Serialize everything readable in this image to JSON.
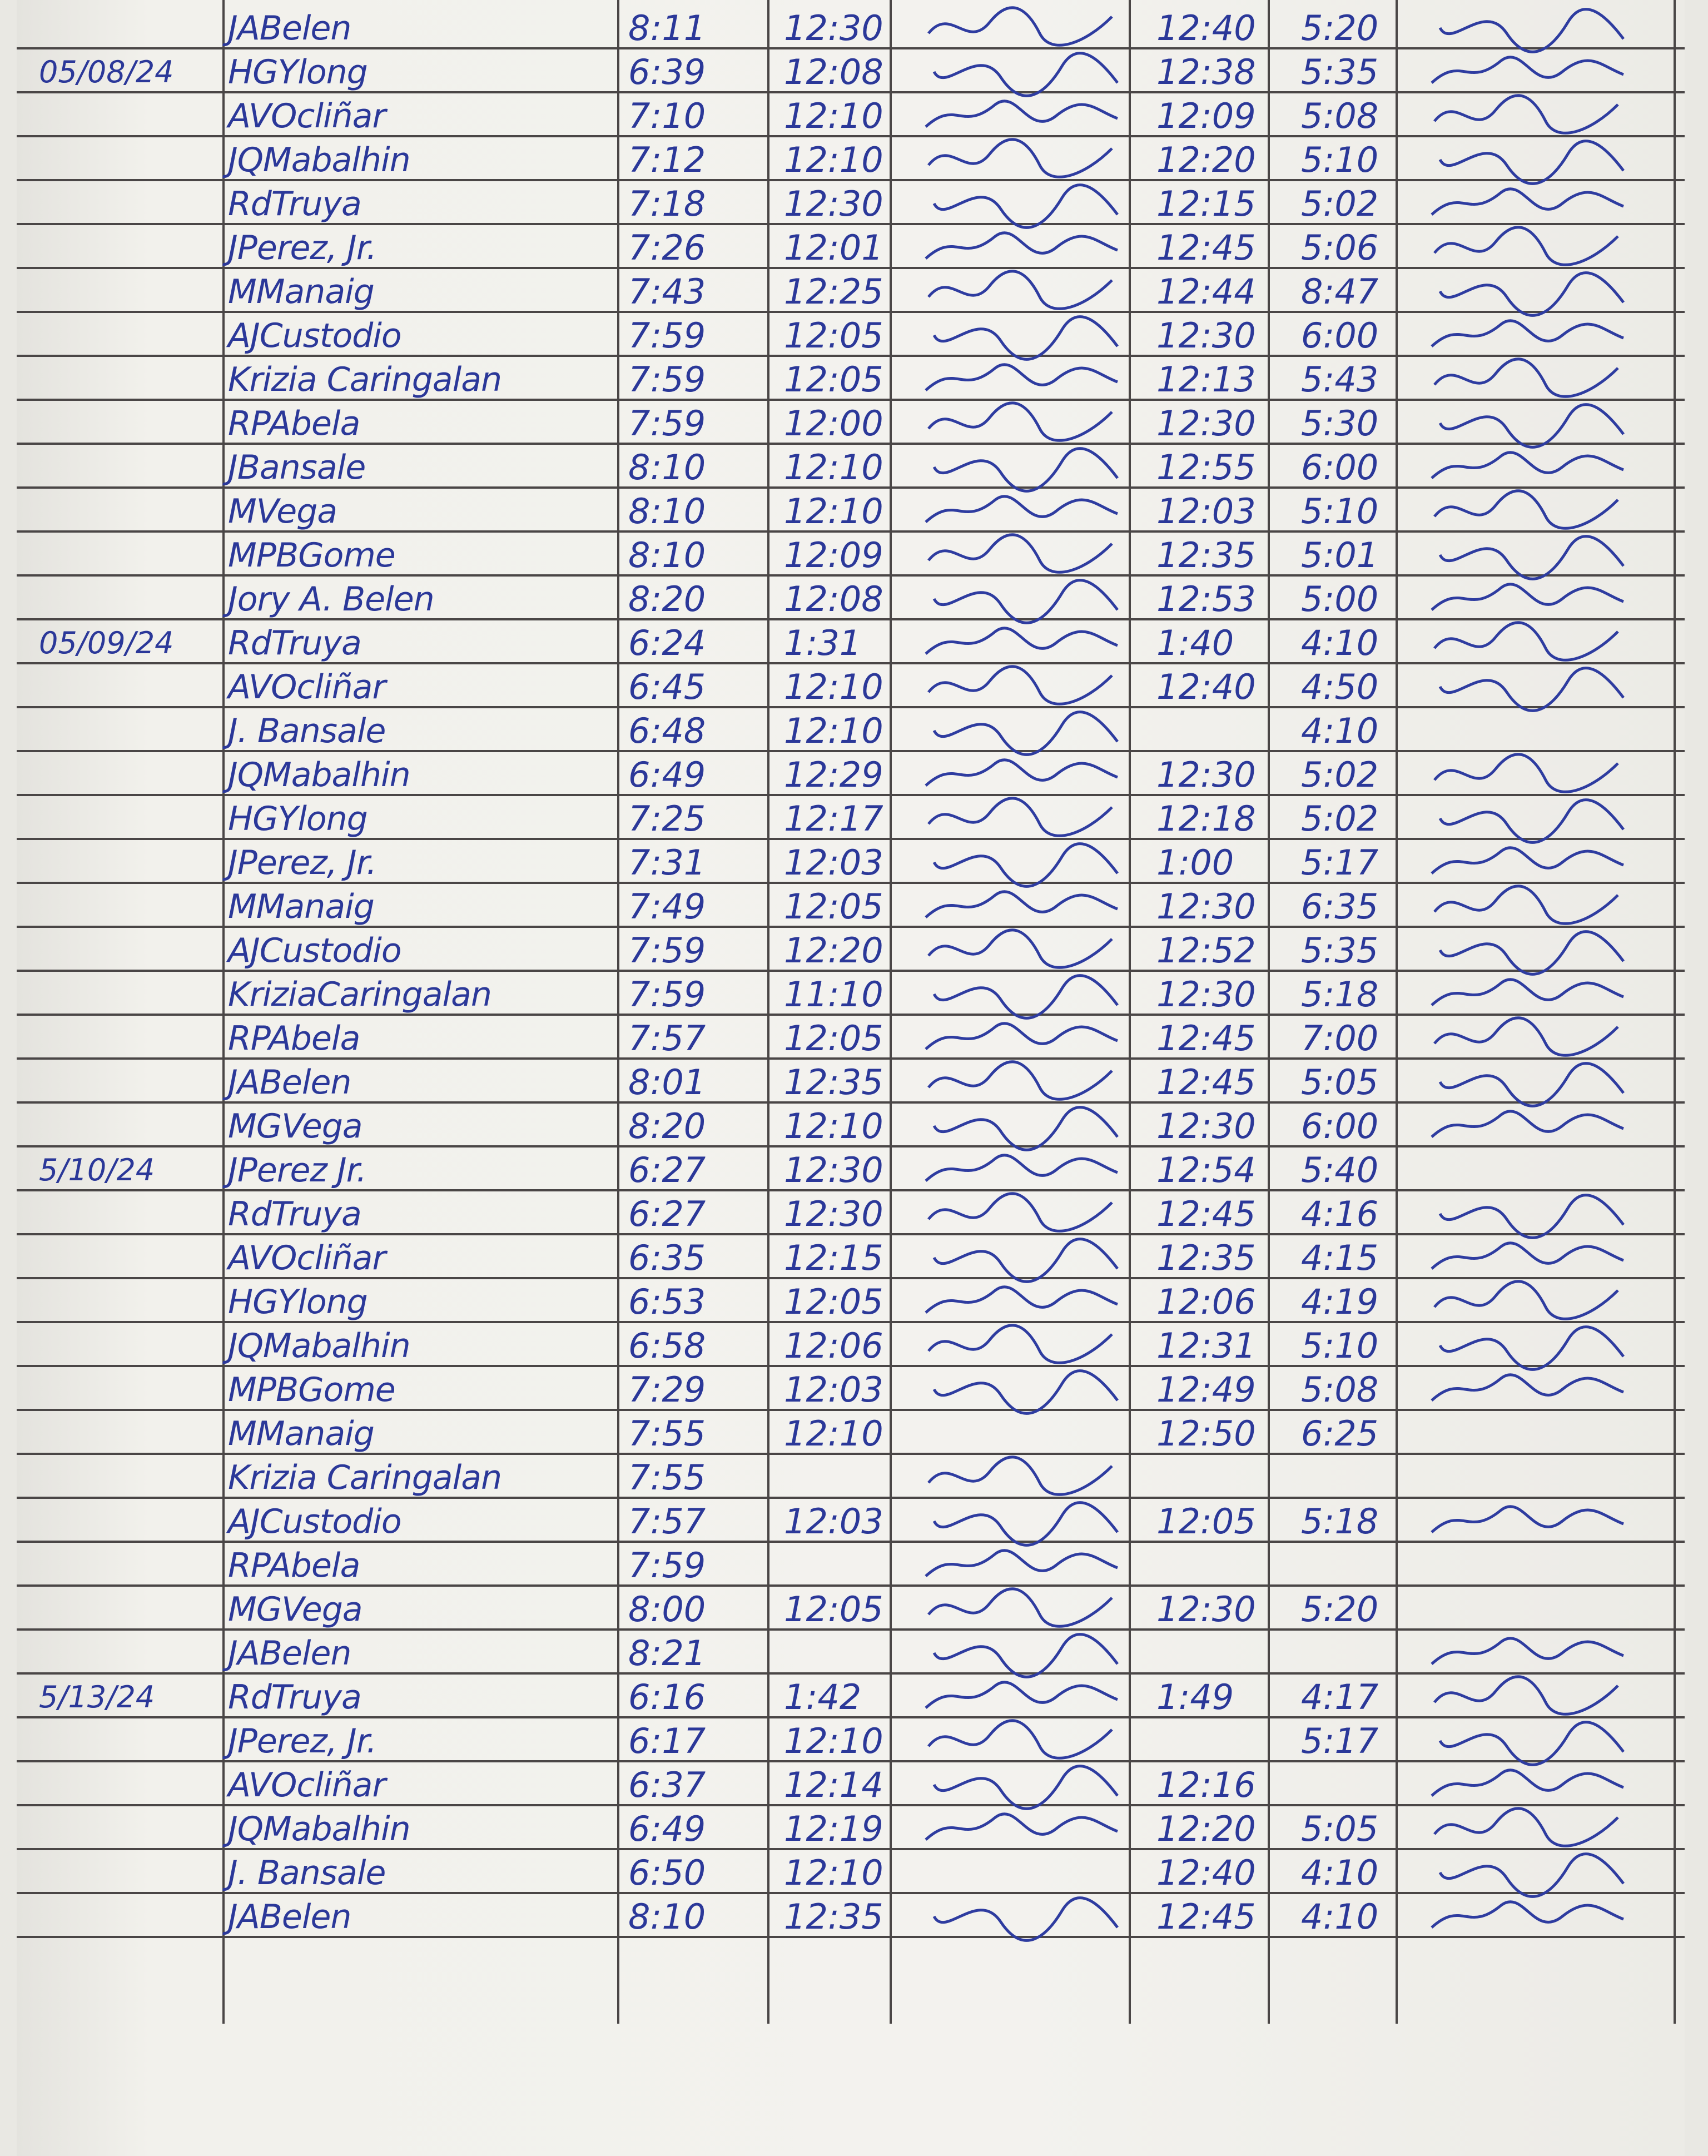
{
  "logbook": {
    "ink_color": "#2b3899",
    "line_color": "#4a4646",
    "columns": [
      "date",
      "name",
      "am_in",
      "am_out",
      "signature",
      "pm_in",
      "pm_out",
      "signature"
    ],
    "rows": [
      {
        "date": "",
        "name": "JABelen",
        "am_in": "8:11",
        "am_out": "12:30",
        "pm_in": "12:40",
        "pm_out": "5:20",
        "sig1": true,
        "sig2": true
      },
      {
        "date": "05/08/24",
        "name": "HGYlong",
        "am_in": "6:39",
        "am_out": "12:08",
        "pm_in": "12:38",
        "pm_out": "5:35",
        "sig1": true,
        "sig2": true
      },
      {
        "date": "",
        "name": "AVOcliñar",
        "am_in": "7:10",
        "am_out": "12:10",
        "pm_in": "12:09",
        "pm_out": "5:08",
        "sig1": true,
        "sig2": true
      },
      {
        "date": "",
        "name": "JQMabalhin",
        "am_in": "7:12",
        "am_out": "12:10",
        "pm_in": "12:20",
        "pm_out": "5:10",
        "sig1": true,
        "sig2": true
      },
      {
        "date": "",
        "name": "RdTruya",
        "am_in": "7:18",
        "am_out": "12:30",
        "pm_in": "12:15",
        "pm_out": "5:02",
        "sig1": true,
        "sig2": true
      },
      {
        "date": "",
        "name": "JPerez, Jr.",
        "am_in": "7:26",
        "am_out": "12:01",
        "pm_in": "12:45",
        "pm_out": "5:06",
        "sig1": true,
        "sig2": true
      },
      {
        "date": "",
        "name": "MManaig",
        "am_in": "7:43",
        "am_out": "12:25",
        "pm_in": "12:44",
        "pm_out": "8:47",
        "sig1": true,
        "sig2": true
      },
      {
        "date": "",
        "name": "AJCustodio",
        "am_in": "7:59",
        "am_out": "12:05",
        "pm_in": "12:30",
        "pm_out": "6:00",
        "sig1": true,
        "sig2": true
      },
      {
        "date": "",
        "name": "Krizia Caringalan",
        "am_in": "7:59",
        "am_out": "12:05",
        "pm_in": "12:13",
        "pm_out": "5:43",
        "sig1": true,
        "sig2": true
      },
      {
        "date": "",
        "name": "RPAbela",
        "am_in": "7:59",
        "am_out": "12:00",
        "pm_in": "12:30",
        "pm_out": "5:30",
        "sig1": true,
        "sig2": true
      },
      {
        "date": "",
        "name": "JBansale",
        "am_in": "8:10",
        "am_out": "12:10",
        "pm_in": "12:55",
        "pm_out": "6:00",
        "sig1": true,
        "sig2": true
      },
      {
        "date": "",
        "name": "MVega",
        "am_in": "8:10",
        "am_out": "12:10",
        "pm_in": "12:03",
        "pm_out": "5:10",
        "sig1": true,
        "sig2": true
      },
      {
        "date": "",
        "name": "MPBGome",
        "am_in": "8:10",
        "am_out": "12:09",
        "pm_in": "12:35",
        "pm_out": "5:01",
        "sig1": true,
        "sig2": true
      },
      {
        "date": "",
        "name": "Jory A. Belen",
        "am_in": "8:20",
        "am_out": "12:08",
        "pm_in": "12:53",
        "pm_out": "5:00",
        "sig1": true,
        "sig2": true
      },
      {
        "date": "05/09/24",
        "name": "RdTruya",
        "am_in": "6:24",
        "am_out": "1:31",
        "pm_in": "1:40",
        "pm_out": "4:10",
        "sig1": true,
        "sig2": true
      },
      {
        "date": "",
        "name": "AVOcliñar",
        "am_in": "6:45",
        "am_out": "12:10",
        "pm_in": "12:40",
        "pm_out": "4:50",
        "sig1": true,
        "sig2": true
      },
      {
        "date": "",
        "name": "J. Bansale",
        "am_in": "6:48",
        "am_out": "12:10",
        "pm_in": "",
        "pm_out": "4:10",
        "sig1": true,
        "sig2": false
      },
      {
        "date": "",
        "name": "JQMabalhin",
        "am_in": "6:49",
        "am_out": "12:29",
        "pm_in": "12:30",
        "pm_out": "5:02",
        "sig1": true,
        "sig2": true
      },
      {
        "date": "",
        "name": "HGYlong",
        "am_in": "7:25",
        "am_out": "12:17",
        "pm_in": "12:18",
        "pm_out": "5:02",
        "sig1": true,
        "sig2": true
      },
      {
        "date": "",
        "name": "JPerez, Jr.",
        "am_in": "7:31",
        "am_out": "12:03",
        "pm_in": "1:00",
        "pm_out": "5:17",
        "sig1": true,
        "sig2": true
      },
      {
        "date": "",
        "name": "MManaig",
        "am_in": "7:49",
        "am_out": "12:05",
        "pm_in": "12:30",
        "pm_out": "6:35",
        "sig1": true,
        "sig2": true
      },
      {
        "date": "",
        "name": "AJCustodio",
        "am_in": "7:59",
        "am_out": "12:20",
        "pm_in": "12:52",
        "pm_out": "5:35",
        "sig1": true,
        "sig2": true
      },
      {
        "date": "",
        "name": "KriziaCaringalan",
        "am_in": "7:59",
        "am_out": "11:10",
        "pm_in": "12:30",
        "pm_out": "5:18",
        "sig1": true,
        "sig2": true
      },
      {
        "date": "",
        "name": "RPAbela",
        "am_in": "7:57",
        "am_out": "12:05",
        "pm_in": "12:45",
        "pm_out": "7:00",
        "sig1": true,
        "sig2": true
      },
      {
        "date": "",
        "name": "JABelen",
        "am_in": "8:01",
        "am_out": "12:35",
        "pm_in": "12:45",
        "pm_out": "5:05",
        "sig1": true,
        "sig2": true
      },
      {
        "date": "",
        "name": "MGVega",
        "am_in": "8:20",
        "am_out": "12:10",
        "pm_in": "12:30",
        "pm_out": "6:00",
        "sig1": true,
        "sig2": true
      },
      {
        "date": "5/10/24",
        "name": "JPerez Jr.",
        "am_in": "6:27",
        "am_out": "12:30",
        "pm_in": "12:54",
        "pm_out": "5:40",
        "sig1": true,
        "sig2": false
      },
      {
        "date": "",
        "name": "RdTruya",
        "am_in": "6:27",
        "am_out": "12:30",
        "pm_in": "12:45",
        "pm_out": "4:16",
        "sig1": true,
        "sig2": true
      },
      {
        "date": "",
        "name": "AVOcliñar",
        "am_in": "6:35",
        "am_out": "12:15",
        "pm_in": "12:35",
        "pm_out": "4:15",
        "sig1": true,
        "sig2": true
      },
      {
        "date": "",
        "name": "HGYlong",
        "am_in": "6:53",
        "am_out": "12:05",
        "pm_in": "12:06",
        "pm_out": "4:19",
        "sig1": true,
        "sig2": true
      },
      {
        "date": "",
        "name": "JQMabalhin",
        "am_in": "6:58",
        "am_out": "12:06",
        "pm_in": "12:31",
        "pm_out": "5:10",
        "sig1": true,
        "sig2": true
      },
      {
        "date": "",
        "name": "MPBGome",
        "am_in": "7:29",
        "am_out": "12:03",
        "pm_in": "12:49",
        "pm_out": "5:08",
        "sig1": true,
        "sig2": true
      },
      {
        "date": "",
        "name": "MManaig",
        "am_in": "7:55",
        "am_out": "12:10",
        "pm_in": "12:50",
        "pm_out": "6:25",
        "sig1": false,
        "sig2": false
      },
      {
        "date": "",
        "name": "Krizia Caringalan",
        "am_in": "7:55",
        "am_out": "",
        "pm_in": "",
        "pm_out": "",
        "sig1": true,
        "sig2": false
      },
      {
        "date": "",
        "name": "AJCustodio",
        "am_in": "7:57",
        "am_out": "12:03",
        "pm_in": "12:05",
        "pm_out": "5:18",
        "sig1": true,
        "sig2": true
      },
      {
        "date": "",
        "name": "RPAbela",
        "am_in": "7:59",
        "am_out": "",
        "pm_in": "",
        "pm_out": "",
        "sig1": true,
        "sig2": false
      },
      {
        "date": "",
        "name": "MGVega",
        "am_in": "8:00",
        "am_out": "12:05",
        "pm_in": "12:30",
        "pm_out": "5:20",
        "sig1": true,
        "sig2": false
      },
      {
        "date": "",
        "name": "JABelen",
        "am_in": "8:21",
        "am_out": "",
        "pm_in": "",
        "pm_out": "",
        "sig1": true,
        "sig2": true
      },
      {
        "date": "5/13/24",
        "name": "RdTruya",
        "am_in": "6:16",
        "am_out": "1:42",
        "pm_in": "1:49",
        "pm_out": "4:17",
        "sig1": true,
        "sig2": true
      },
      {
        "date": "",
        "name": "JPerez, Jr.",
        "am_in": "6:17",
        "am_out": "12:10",
        "pm_in": "",
        "pm_out": "5:17",
        "sig1": true,
        "sig2": true
      },
      {
        "date": "",
        "name": "AVOcliñar",
        "am_in": "6:37",
        "am_out": "12:14",
        "pm_in": "12:16",
        "pm_out": "",
        "sig1": true,
        "sig2": true
      },
      {
        "date": "",
        "name": "JQMabalhin",
        "am_in": "6:49",
        "am_out": "12:19",
        "pm_in": "12:20",
        "pm_out": "5:05",
        "sig1": true,
        "sig2": true
      },
      {
        "date": "",
        "name": "J. Bansale",
        "am_in": "6:50",
        "am_out": "12:10",
        "pm_in": "12:40",
        "pm_out": "4:10",
        "sig1": false,
        "sig2": true
      },
      {
        "date": "",
        "name": "JABelen",
        "am_in": "8:10",
        "am_out": "12:35",
        "pm_in": "12:45",
        "pm_out": "4:10",
        "sig1": true,
        "sig2": true
      }
    ]
  }
}
